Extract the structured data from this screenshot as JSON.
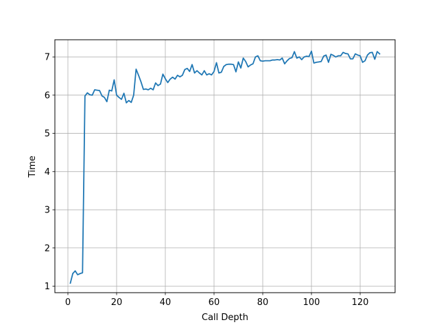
{
  "chart_data": {
    "type": "line",
    "title": "",
    "xlabel": "Call Depth",
    "ylabel": "Time",
    "xlim": [
      -5.35,
      134.35
    ],
    "ylim": [
      0.83,
      7.45
    ],
    "xticks": [
      0,
      20,
      40,
      60,
      80,
      100,
      120
    ],
    "yticks": [
      1,
      2,
      3,
      4,
      5,
      6,
      7
    ],
    "grid": true,
    "line_color": "#1f77b4",
    "series": [
      {
        "x": [
          1,
          2,
          3,
          4,
          5,
          6,
          7,
          8,
          9,
          10,
          11,
          12,
          13,
          14,
          15,
          16,
          17,
          18,
          19,
          20,
          21,
          22,
          23,
          24,
          25,
          26,
          27,
          28,
          29,
          30,
          31,
          32,
          33,
          34,
          35,
          36,
          37,
          38,
          39,
          40,
          41,
          42,
          43,
          44,
          45,
          46,
          47,
          48,
          49,
          50,
          51,
          52,
          53,
          54,
          55,
          56,
          57,
          58,
          59,
          60,
          61,
          62,
          63,
          64,
          65,
          66,
          67,
          68,
          69,
          70,
          71,
          72,
          73,
          74,
          75,
          76,
          77,
          78,
          79,
          80,
          81,
          82,
          83,
          84,
          85,
          86,
          87,
          88,
          89,
          90,
          91,
          92,
          93,
          94,
          95,
          96,
          97,
          98,
          99,
          100,
          101,
          102,
          103,
          104,
          105,
          106,
          107,
          108,
          109,
          110,
          111,
          112,
          113,
          114,
          115,
          116,
          117,
          118,
          119,
          120,
          121,
          122,
          123,
          124,
          125,
          126,
          127,
          128
        ],
        "y": [
          1.08,
          1.33,
          1.4,
          1.3,
          1.33,
          1.35,
          5.98,
          6.06,
          6.01,
          6.0,
          6.14,
          6.13,
          6.12,
          5.98,
          5.94,
          5.83,
          6.13,
          6.11,
          6.4,
          6.0,
          5.94,
          5.89,
          6.05,
          5.8,
          5.86,
          5.81,
          6.0,
          6.68,
          6.52,
          6.35,
          6.15,
          6.16,
          6.14,
          6.18,
          6.14,
          6.32,
          6.25,
          6.29,
          6.55,
          6.43,
          6.33,
          6.42,
          6.47,
          6.42,
          6.52,
          6.48,
          6.52,
          6.67,
          6.7,
          6.62,
          6.8,
          6.58,
          6.64,
          6.58,
          6.53,
          6.64,
          6.53,
          6.56,
          6.53,
          6.62,
          6.85,
          6.58,
          6.6,
          6.75,
          6.8,
          6.81,
          6.81,
          6.8,
          6.61,
          6.87,
          6.71,
          6.97,
          6.88,
          6.74,
          6.79,
          6.82,
          7.0,
          7.03,
          6.9,
          6.89,
          6.9,
          6.9,
          6.9,
          6.92,
          6.92,
          6.93,
          6.92,
          6.97,
          6.82,
          6.9,
          6.96,
          6.98,
          7.14,
          6.97,
          7.0,
          6.93,
          7.0,
          7.02,
          7.01,
          7.15,
          6.84,
          6.86,
          6.87,
          6.88,
          7.02,
          7.05,
          6.86,
          7.07,
          7.04,
          7.0,
          7.03,
          7.03,
          7.12,
          7.09,
          7.08,
          6.95,
          6.95,
          7.08,
          7.05,
          7.03,
          6.86,
          6.9,
          7.05,
          7.11,
          7.12,
          6.94,
          7.14,
          7.08
        ]
      }
    ]
  }
}
